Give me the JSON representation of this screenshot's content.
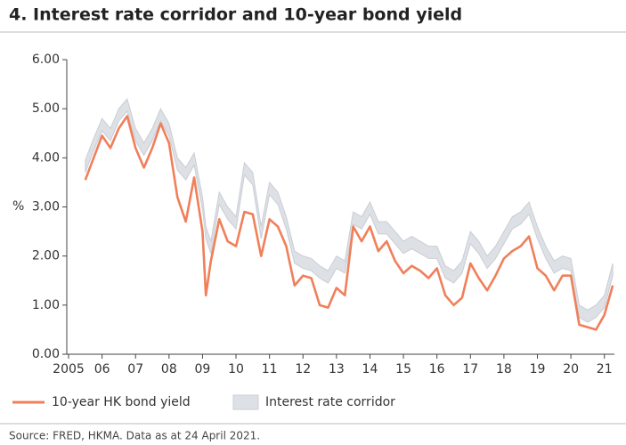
{
  "chart_data": {
    "type": "line",
    "title": "4. Interest rate corridor and 10-year bond yield",
    "ylabel": "%",
    "source": "Source: FRED, HKMA. Data as at 24 April 2021.",
    "grid": false,
    "x": [
      2005.5,
      2005.75,
      2006.0,
      2006.25,
      2006.5,
      2006.75,
      2007.0,
      2007.25,
      2007.5,
      2007.75,
      2008.0,
      2008.25,
      2008.5,
      2008.75,
      2009.0,
      2009.1,
      2009.25,
      2009.5,
      2009.75,
      2010.0,
      2010.25,
      2010.5,
      2010.75,
      2011.0,
      2011.25,
      2011.5,
      2011.75,
      2012.0,
      2012.25,
      2012.5,
      2012.75,
      2013.0,
      2013.25,
      2013.5,
      2013.75,
      2014.0,
      2014.25,
      2014.5,
      2014.75,
      2015.0,
      2015.25,
      2015.5,
      2015.75,
      2016.0,
      2016.25,
      2016.5,
      2016.75,
      2017.0,
      2017.25,
      2017.5,
      2017.75,
      2018.0,
      2018.25,
      2018.5,
      2018.75,
      2019.0,
      2019.25,
      2019.5,
      2019.75,
      2020.0,
      2020.25,
      2020.5,
      2020.75,
      2021.0,
      2021.25
    ],
    "series": [
      {
        "name": "10-year HK bond yield",
        "color": "#f07f5a",
        "values": [
          3.55,
          4.0,
          4.45,
          4.2,
          4.6,
          4.85,
          4.2,
          3.8,
          4.2,
          4.7,
          4.3,
          3.2,
          2.7,
          3.6,
          2.5,
          1.2,
          1.9,
          2.75,
          2.3,
          2.2,
          2.9,
          2.85,
          2.0,
          2.75,
          2.6,
          2.2,
          1.4,
          1.6,
          1.55,
          1.0,
          0.95,
          1.35,
          1.2,
          2.6,
          2.3,
          2.6,
          2.1,
          2.3,
          1.9,
          1.65,
          1.8,
          1.7,
          1.55,
          1.75,
          1.2,
          1.0,
          1.15,
          1.85,
          1.55,
          1.3,
          1.6,
          1.95,
          2.1,
          2.2,
          2.4,
          1.75,
          1.6,
          1.3,
          1.6,
          1.6,
          0.6,
          0.55,
          0.5,
          0.8,
          1.4
        ]
      },
      {
        "name": "Interest rate corridor",
        "color": "#dde1e6",
        "edge": "#c9ced4",
        "upper": [
          3.95,
          4.4,
          4.8,
          4.6,
          5.0,
          5.2,
          4.6,
          4.3,
          4.6,
          5.0,
          4.7,
          4.0,
          3.8,
          4.1,
          3.2,
          2.6,
          2.3,
          3.3,
          3.0,
          2.8,
          3.9,
          3.7,
          2.6,
          3.5,
          3.3,
          2.8,
          2.1,
          2.0,
          1.95,
          1.8,
          1.7,
          2.0,
          1.9,
          2.9,
          2.8,
          3.1,
          2.7,
          2.7,
          2.5,
          2.3,
          2.4,
          2.3,
          2.2,
          2.2,
          1.8,
          1.7,
          1.9,
          2.5,
          2.3,
          2.0,
          2.2,
          2.5,
          2.8,
          2.9,
          3.1,
          2.6,
          2.2,
          1.9,
          2.0,
          1.95,
          1.0,
          0.9,
          1.0,
          1.2,
          1.85
        ],
        "lower": [
          3.7,
          4.15,
          4.55,
          4.35,
          4.75,
          4.95,
          4.35,
          4.05,
          4.35,
          4.75,
          4.45,
          3.75,
          3.55,
          3.85,
          2.95,
          2.35,
          2.05,
          3.05,
          2.75,
          2.55,
          3.65,
          3.45,
          2.35,
          3.25,
          3.05,
          2.55,
          1.85,
          1.75,
          1.7,
          1.55,
          1.45,
          1.75,
          1.65,
          2.65,
          2.55,
          2.85,
          2.45,
          2.45,
          2.25,
          2.05,
          2.15,
          2.05,
          1.95,
          1.95,
          1.55,
          1.45,
          1.65,
          2.25,
          2.05,
          1.75,
          1.95,
          2.25,
          2.55,
          2.65,
          2.85,
          2.35,
          1.95,
          1.65,
          1.75,
          1.7,
          0.75,
          0.65,
          0.75,
          0.95,
          1.6
        ]
      }
    ],
    "xlim": [
      2005.0,
      2021.3
    ],
    "xticks": [
      {
        "value": 2005,
        "label": "2005"
      },
      {
        "value": 2006,
        "label": "06"
      },
      {
        "value": 2007,
        "label": "07"
      },
      {
        "value": 2008,
        "label": "08"
      },
      {
        "value": 2009,
        "label": "09"
      },
      {
        "value": 2010,
        "label": "10"
      },
      {
        "value": 2011,
        "label": "11"
      },
      {
        "value": 2012,
        "label": "12"
      },
      {
        "value": 2013,
        "label": "13"
      },
      {
        "value": 2014,
        "label": "14"
      },
      {
        "value": 2015,
        "label": "15"
      },
      {
        "value": 2016,
        "label": "16"
      },
      {
        "value": 2017,
        "label": "17"
      },
      {
        "value": 2018,
        "label": "18"
      },
      {
        "value": 2019,
        "label": "19"
      },
      {
        "value": 2020,
        "label": "20"
      },
      {
        "value": 2021,
        "label": "21"
      }
    ],
    "ylim": [
      0,
      6
    ],
    "yticks": [
      {
        "value": 0,
        "label": "0.00"
      },
      {
        "value": 1,
        "label": "1.00"
      },
      {
        "value": 2,
        "label": "2.00"
      },
      {
        "value": 3,
        "label": "3.00"
      },
      {
        "value": 4,
        "label": "4.00"
      },
      {
        "value": 5,
        "label": "5.00"
      },
      {
        "value": 6,
        "label": "6.00"
      }
    ]
  }
}
